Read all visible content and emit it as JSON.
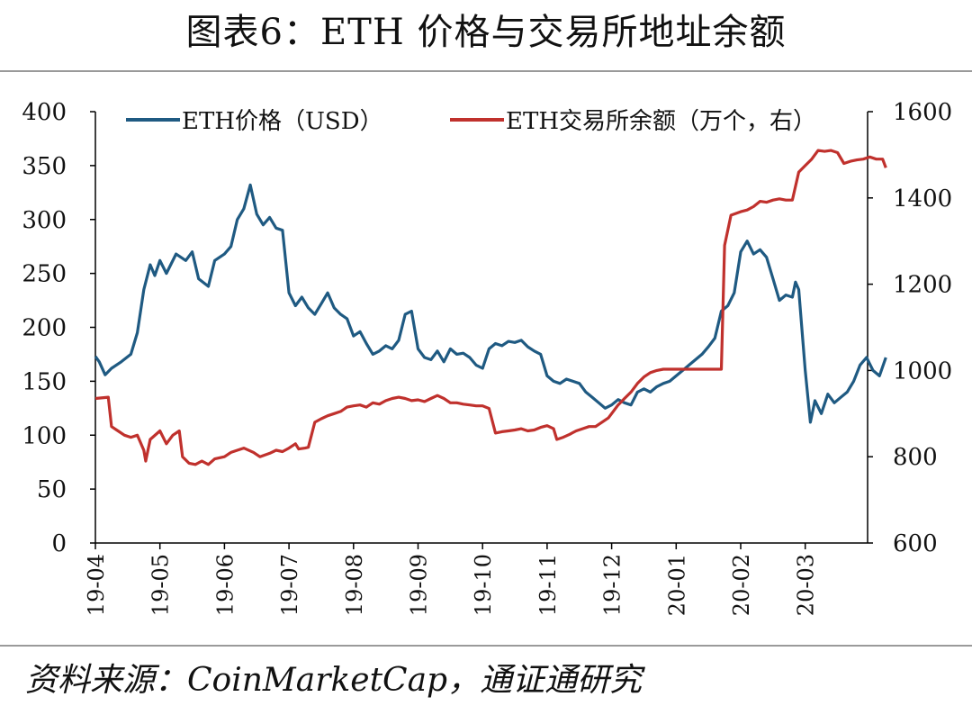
{
  "title": "图表6：ETH 价格与交易所地址余额",
  "source": "资料来源：CoinMarketCap，通证通研究",
  "chart_data": {
    "type": "line",
    "x_labels": [
      "19-04",
      "19-05",
      "19-06",
      "19-07",
      "19-08",
      "19-09",
      "19-10",
      "19-11",
      "19-12",
      "20-01",
      "20-02",
      "20-03"
    ],
    "left_axis": {
      "range": [
        0,
        400
      ],
      "ticks": [
        "0",
        "50",
        "100",
        "150",
        "200",
        "250",
        "300",
        "350",
        "400"
      ]
    },
    "right_axis": {
      "range": [
        600,
        1600
      ],
      "ticks": [
        "600",
        "800",
        "1000",
        "1200",
        "1400",
        "1600"
      ]
    },
    "grid": false,
    "legend_position": "top",
    "series": [
      {
        "name": "ETH价格（USD）",
        "axis": "left",
        "color": "#1f5a82",
        "points": [
          [
            0.0,
            173
          ],
          [
            0.06,
            168
          ],
          [
            0.15,
            156
          ],
          [
            0.25,
            162
          ],
          [
            0.4,
            168
          ],
          [
            0.55,
            175
          ],
          [
            0.65,
            195
          ],
          [
            0.75,
            235
          ],
          [
            0.85,
            258
          ],
          [
            0.92,
            248
          ],
          [
            1.0,
            262
          ],
          [
            1.1,
            250
          ],
          [
            1.25,
            268
          ],
          [
            1.4,
            262
          ],
          [
            1.5,
            270
          ],
          [
            1.6,
            245
          ],
          [
            1.75,
            238
          ],
          [
            1.85,
            262
          ],
          [
            2.0,
            268
          ],
          [
            2.1,
            275
          ],
          [
            2.2,
            300
          ],
          [
            2.3,
            310
          ],
          [
            2.4,
            332
          ],
          [
            2.5,
            305
          ],
          [
            2.6,
            295
          ],
          [
            2.7,
            302
          ],
          [
            2.8,
            292
          ],
          [
            2.9,
            290
          ],
          [
            3.0,
            232
          ],
          [
            3.1,
            220
          ],
          [
            3.2,
            228
          ],
          [
            3.3,
            218
          ],
          [
            3.4,
            212
          ],
          [
            3.5,
            222
          ],
          [
            3.6,
            232
          ],
          [
            3.7,
            218
          ],
          [
            3.8,
            212
          ],
          [
            3.9,
            208
          ],
          [
            4.0,
            192
          ],
          [
            4.1,
            196
          ],
          [
            4.2,
            185
          ],
          [
            4.3,
            175
          ],
          [
            4.4,
            178
          ],
          [
            4.5,
            183
          ],
          [
            4.6,
            180
          ],
          [
            4.7,
            188
          ],
          [
            4.8,
            212
          ],
          [
            4.9,
            215
          ],
          [
            5.0,
            180
          ],
          [
            5.1,
            172
          ],
          [
            5.2,
            170
          ],
          [
            5.3,
            178
          ],
          [
            5.4,
            168
          ],
          [
            5.5,
            180
          ],
          [
            5.6,
            175
          ],
          [
            5.7,
            176
          ],
          [
            5.8,
            172
          ],
          [
            5.9,
            165
          ],
          [
            6.0,
            162
          ],
          [
            6.1,
            180
          ],
          [
            6.2,
            185
          ],
          [
            6.3,
            183
          ],
          [
            6.4,
            187
          ],
          [
            6.5,
            186
          ],
          [
            6.6,
            188
          ],
          [
            6.7,
            182
          ],
          [
            6.8,
            178
          ],
          [
            6.9,
            175
          ],
          [
            7.0,
            155
          ],
          [
            7.1,
            150
          ],
          [
            7.2,
            148
          ],
          [
            7.3,
            152
          ],
          [
            7.4,
            150
          ],
          [
            7.5,
            148
          ],
          [
            7.6,
            140
          ],
          [
            7.7,
            135
          ],
          [
            7.8,
            130
          ],
          [
            7.9,
            125
          ],
          [
            8.0,
            128
          ],
          [
            8.1,
            133
          ],
          [
            8.2,
            130
          ],
          [
            8.3,
            128
          ],
          [
            8.4,
            140
          ],
          [
            8.5,
            143
          ],
          [
            8.6,
            140
          ],
          [
            8.7,
            145
          ],
          [
            8.8,
            148
          ],
          [
            8.9,
            150
          ],
          [
            9.0,
            155
          ],
          [
            9.1,
            160
          ],
          [
            9.2,
            165
          ],
          [
            9.3,
            170
          ],
          [
            9.4,
            175
          ],
          [
            9.5,
            182
          ],
          [
            9.6,
            190
          ],
          [
            9.7,
            215
          ],
          [
            9.8,
            220
          ],
          [
            9.9,
            232
          ],
          [
            10.0,
            270
          ],
          [
            10.1,
            280
          ],
          [
            10.2,
            268
          ],
          [
            10.3,
            272
          ],
          [
            10.4,
            265
          ],
          [
            10.5,
            245
          ],
          [
            10.6,
            225
          ],
          [
            10.7,
            230
          ],
          [
            10.8,
            228
          ],
          [
            10.85,
            242
          ],
          [
            10.9,
            235
          ],
          [
            11.0,
            160
          ],
          [
            11.08,
            112
          ],
          [
            11.15,
            132
          ],
          [
            11.25,
            120
          ],
          [
            11.35,
            138
          ],
          [
            11.45,
            130
          ],
          [
            11.55,
            135
          ],
          [
            11.65,
            140
          ],
          [
            11.75,
            150
          ],
          [
            11.85,
            165
          ],
          [
            11.95,
            172
          ],
          [
            12.05,
            160
          ],
          [
            12.15,
            155
          ],
          [
            12.25,
            172
          ]
        ]
      },
      {
        "name": "ETH交易所余额（万个，右）",
        "axis": "right",
        "color": "#c0312d",
        "points": [
          [
            0.0,
            935
          ],
          [
            0.2,
            938
          ],
          [
            0.25,
            870
          ],
          [
            0.35,
            860
          ],
          [
            0.45,
            850
          ],
          [
            0.55,
            845
          ],
          [
            0.65,
            850
          ],
          [
            0.75,
            815
          ],
          [
            0.78,
            790
          ],
          [
            0.85,
            840
          ],
          [
            1.0,
            860
          ],
          [
            1.1,
            830
          ],
          [
            1.2,
            850
          ],
          [
            1.3,
            860
          ],
          [
            1.35,
            800
          ],
          [
            1.45,
            785
          ],
          [
            1.55,
            782
          ],
          [
            1.65,
            790
          ],
          [
            1.75,
            782
          ],
          [
            1.85,
            795
          ],
          [
            2.0,
            800
          ],
          [
            2.1,
            810
          ],
          [
            2.2,
            815
          ],
          [
            2.3,
            820
          ],
          [
            2.45,
            810
          ],
          [
            2.55,
            800
          ],
          [
            2.7,
            808
          ],
          [
            2.8,
            815
          ],
          [
            2.9,
            812
          ],
          [
            3.0,
            820
          ],
          [
            3.1,
            830
          ],
          [
            3.15,
            818
          ],
          [
            3.25,
            820
          ],
          [
            3.3,
            822
          ],
          [
            3.4,
            880
          ],
          [
            3.5,
            888
          ],
          [
            3.6,
            895
          ],
          [
            3.7,
            900
          ],
          [
            3.8,
            905
          ],
          [
            3.9,
            915
          ],
          [
            4.0,
            918
          ],
          [
            4.1,
            920
          ],
          [
            4.2,
            915
          ],
          [
            4.3,
            925
          ],
          [
            4.4,
            922
          ],
          [
            4.5,
            930
          ],
          [
            4.6,
            935
          ],
          [
            4.7,
            938
          ],
          [
            4.8,
            935
          ],
          [
            4.9,
            930
          ],
          [
            5.0,
            932
          ],
          [
            5.1,
            928
          ],
          [
            5.2,
            935
          ],
          [
            5.3,
            942
          ],
          [
            5.4,
            935
          ],
          [
            5.5,
            925
          ],
          [
            5.6,
            925
          ],
          [
            5.7,
            922
          ],
          [
            5.8,
            920
          ],
          [
            5.9,
            918
          ],
          [
            6.0,
            918
          ],
          [
            6.1,
            912
          ],
          [
            6.2,
            855
          ],
          [
            6.3,
            858
          ],
          [
            6.4,
            860
          ],
          [
            6.5,
            862
          ],
          [
            6.6,
            865
          ],
          [
            6.7,
            860
          ],
          [
            6.8,
            862
          ],
          [
            6.9,
            868
          ],
          [
            7.0,
            872
          ],
          [
            7.1,
            865
          ],
          [
            7.15,
            840
          ],
          [
            7.25,
            845
          ],
          [
            7.35,
            852
          ],
          [
            7.45,
            860
          ],
          [
            7.55,
            865
          ],
          [
            7.65,
            870
          ],
          [
            7.75,
            870
          ],
          [
            7.85,
            880
          ],
          [
            7.95,
            890
          ],
          [
            8.0,
            900
          ],
          [
            8.1,
            920
          ],
          [
            8.2,
            935
          ],
          [
            8.3,
            950
          ],
          [
            8.4,
            970
          ],
          [
            8.5,
            985
          ],
          [
            8.6,
            995
          ],
          [
            8.7,
            1000
          ],
          [
            8.8,
            1003
          ],
          [
            9.0,
            1003
          ],
          [
            9.2,
            1003
          ],
          [
            9.4,
            1003
          ],
          [
            9.6,
            1003
          ],
          [
            9.7,
            1003
          ],
          [
            9.75,
            1290
          ],
          [
            9.85,
            1360
          ],
          [
            10.0,
            1368
          ],
          [
            10.1,
            1372
          ],
          [
            10.2,
            1380
          ],
          [
            10.3,
            1392
          ],
          [
            10.4,
            1390
          ],
          [
            10.5,
            1395
          ],
          [
            10.6,
            1398
          ],
          [
            10.7,
            1395
          ],
          [
            10.8,
            1395
          ],
          [
            10.9,
            1460
          ],
          [
            11.0,
            1475
          ],
          [
            11.1,
            1490
          ],
          [
            11.2,
            1510
          ],
          [
            11.3,
            1508
          ],
          [
            11.4,
            1510
          ],
          [
            11.5,
            1505
          ],
          [
            11.6,
            1480
          ],
          [
            11.7,
            1485
          ],
          [
            11.8,
            1488
          ],
          [
            11.9,
            1490
          ],
          [
            12.0,
            1495
          ],
          [
            12.1,
            1490
          ],
          [
            12.2,
            1490
          ],
          [
            12.25,
            1470
          ]
        ]
      }
    ]
  }
}
